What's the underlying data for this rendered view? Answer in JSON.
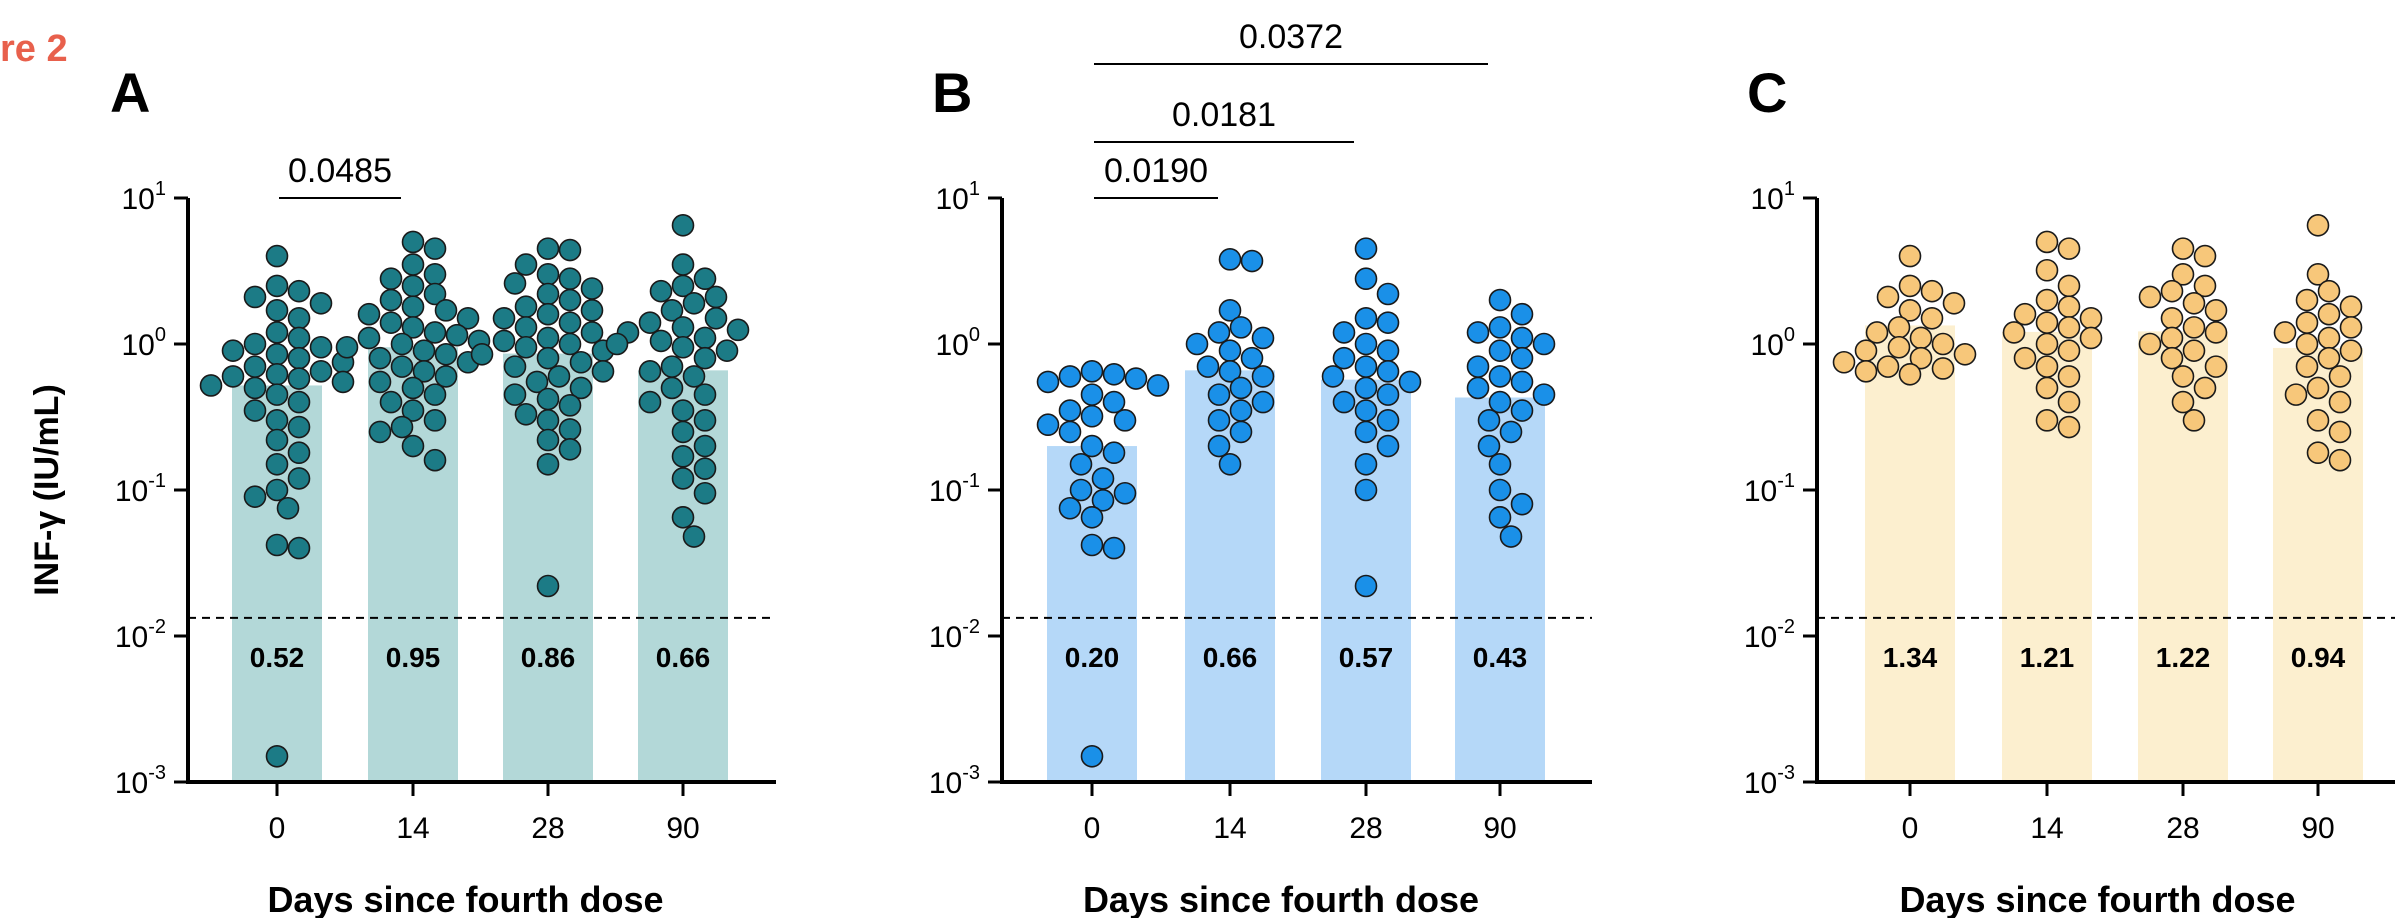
{
  "figure_label": "re 2",
  "chart_data": [
    {
      "panel": "A",
      "type": "scatter",
      "ylabel": "INF-γ (IU/mL)",
      "xlabel": "Days since fourth dose",
      "categories": [
        "0",
        "14",
        "28",
        "90"
      ],
      "y_scale": "log",
      "ylim": [
        0.001,
        10
      ],
      "y_ticks": [
        {
          "base": "10",
          "exp": "1"
        },
        {
          "base": "10",
          "exp": "0"
        },
        {
          "base": "10",
          "exp": "-1"
        },
        {
          "base": "10",
          "exp": "-2"
        },
        {
          "base": "10",
          "exp": "-3"
        }
      ],
      "cutoff": 0.0133,
      "bar_color": "#b3d8d8",
      "point_color": "#1c7b86",
      "medians": [
        0.52,
        0.95,
        0.86,
        0.66
      ],
      "median_labels": [
        "0.52",
        "0.95",
        "0.86",
        "0.66"
      ],
      "comparisons": [
        {
          "from": "0",
          "to": "14",
          "p": "0.0485"
        }
      ],
      "series": [
        {
          "category": "0",
          "values": [
            4.0,
            2.5,
            2.3,
            2.1,
            1.9,
            1.7,
            1.5,
            1.2,
            1.1,
            1.0,
            0.95,
            0.9,
            0.85,
            0.8,
            0.75,
            0.7,
            0.65,
            0.62,
            0.6,
            0.58,
            0.55,
            0.52,
            0.5,
            0.45,
            0.4,
            0.35,
            0.3,
            0.27,
            0.22,
            0.18,
            0.15,
            0.12,
            0.1,
            0.09,
            0.075,
            0.042,
            0.04,
            0.0015
          ]
        },
        {
          "category": "14",
          "values": [
            5.0,
            4.5,
            3.5,
            3.0,
            2.8,
            2.5,
            2.2,
            2.0,
            1.8,
            1.7,
            1.6,
            1.5,
            1.4,
            1.3,
            1.2,
            1.15,
            1.1,
            1.05,
            1.0,
            0.95,
            0.9,
            0.85,
            0.8,
            0.75,
            0.7,
            0.65,
            0.6,
            0.55,
            0.5,
            0.45,
            0.4,
            0.35,
            0.3,
            0.27,
            0.25,
            0.2,
            0.16
          ]
        },
        {
          "category": "28",
          "values": [
            4.5,
            4.4,
            3.5,
            3.0,
            2.8,
            2.6,
            2.4,
            2.2,
            2.0,
            1.8,
            1.7,
            1.6,
            1.5,
            1.4,
            1.3,
            1.2,
            1.1,
            1.05,
            1.0,
            0.95,
            0.9,
            0.85,
            0.8,
            0.75,
            0.7,
            0.65,
            0.6,
            0.55,
            0.5,
            0.45,
            0.42,
            0.38,
            0.33,
            0.3,
            0.26,
            0.22,
            0.19,
            0.15,
            0.022
          ]
        },
        {
          "category": "90",
          "values": [
            6.5,
            3.5,
            2.8,
            2.5,
            2.3,
            2.1,
            1.9,
            1.7,
            1.5,
            1.4,
            1.3,
            1.25,
            1.2,
            1.1,
            1.05,
            1.0,
            0.95,
            0.9,
            0.8,
            0.7,
            0.65,
            0.6,
            0.5,
            0.45,
            0.4,
            0.35,
            0.3,
            0.25,
            0.2,
            0.17,
            0.14,
            0.12,
            0.095,
            0.065,
            0.048
          ]
        }
      ]
    },
    {
      "panel": "B",
      "type": "scatter",
      "ylabel": "",
      "xlabel": "Days since fourth dose",
      "categories": [
        "0",
        "14",
        "28",
        "90"
      ],
      "y_scale": "log",
      "ylim": [
        0.001,
        10
      ],
      "y_ticks": [
        {
          "base": "10",
          "exp": "1"
        },
        {
          "base": "10",
          "exp": "0"
        },
        {
          "base": "10",
          "exp": "-1"
        },
        {
          "base": "10",
          "exp": "-2"
        },
        {
          "base": "10",
          "exp": "-3"
        }
      ],
      "cutoff": 0.0133,
      "bar_color": "#b5d8f8",
      "point_color": "#1a90e8",
      "medians": [
        0.2,
        0.66,
        0.57,
        0.43
      ],
      "median_labels": [
        "0.20",
        "0.66",
        "0.57",
        "0.43"
      ],
      "comparisons": [
        {
          "from": "0",
          "to": "14",
          "p": "0.0190"
        },
        {
          "from": "0",
          "to": "28",
          "p": "0.0181"
        },
        {
          "from": "0",
          "to": "90",
          "p": "0.0372"
        }
      ],
      "series": [
        {
          "category": "0",
          "values": [
            0.65,
            0.62,
            0.6,
            0.58,
            0.55,
            0.52,
            0.45,
            0.4,
            0.35,
            0.32,
            0.3,
            0.28,
            0.25,
            0.2,
            0.18,
            0.15,
            0.12,
            0.1,
            0.095,
            0.085,
            0.075,
            0.065,
            0.042,
            0.04,
            0.0015
          ]
        },
        {
          "category": "14",
          "values": [
            3.8,
            3.7,
            1.7,
            1.3,
            1.2,
            1.1,
            1.0,
            0.9,
            0.8,
            0.7,
            0.65,
            0.6,
            0.5,
            0.45,
            0.4,
            0.35,
            0.3,
            0.25,
            0.2,
            0.15
          ]
        },
        {
          "category": "28",
          "values": [
            4.5,
            2.8,
            2.2,
            1.5,
            1.4,
            1.2,
            1.0,
            0.9,
            0.8,
            0.7,
            0.65,
            0.6,
            0.55,
            0.5,
            0.45,
            0.4,
            0.35,
            0.3,
            0.25,
            0.2,
            0.15,
            0.1,
            0.022
          ]
        },
        {
          "category": "90",
          "values": [
            2.0,
            1.6,
            1.3,
            1.2,
            1.1,
            1.0,
            0.9,
            0.8,
            0.7,
            0.6,
            0.55,
            0.5,
            0.45,
            0.4,
            0.35,
            0.3,
            0.25,
            0.2,
            0.15,
            0.1,
            0.08,
            0.065,
            0.048
          ]
        }
      ]
    },
    {
      "panel": "C",
      "type": "scatter",
      "ylabel": "",
      "xlabel": "Days since fourth dose",
      "categories": [
        "0",
        "14",
        "28",
        "90"
      ],
      "y_scale": "log",
      "ylim": [
        0.001,
        10
      ],
      "y_ticks": [
        {
          "base": "10",
          "exp": "1"
        },
        {
          "base": "10",
          "exp": "0"
        },
        {
          "base": "10",
          "exp": "-1"
        },
        {
          "base": "10",
          "exp": "-2"
        },
        {
          "base": "10",
          "exp": "-3"
        }
      ],
      "cutoff": 0.0133,
      "bar_color": "#fcefcf",
      "point_color": "#f7c77a",
      "medians": [
        1.34,
        1.21,
        1.22,
        0.94
      ],
      "median_labels": [
        "1.34",
        "1.21",
        "1.22",
        "0.94"
      ],
      "comparisons": [],
      "series": [
        {
          "category": "0",
          "values": [
            4.0,
            2.5,
            2.3,
            2.1,
            1.9,
            1.7,
            1.5,
            1.3,
            1.2,
            1.1,
            1.0,
            0.95,
            0.9,
            0.85,
            0.8,
            0.75,
            0.7,
            0.68,
            0.65,
            0.62
          ]
        },
        {
          "category": "14",
          "values": [
            5.0,
            4.5,
            3.2,
            2.5,
            2.0,
            1.8,
            1.6,
            1.5,
            1.4,
            1.3,
            1.2,
            1.1,
            1.0,
            0.9,
            0.8,
            0.7,
            0.6,
            0.5,
            0.4,
            0.3,
            0.27
          ]
        },
        {
          "category": "28",
          "values": [
            4.5,
            4.0,
            3.0,
            2.5,
            2.3,
            2.1,
            1.9,
            1.7,
            1.5,
            1.3,
            1.2,
            1.1,
            1.0,
            0.9,
            0.8,
            0.7,
            0.6,
            0.5,
            0.4,
            0.3
          ]
        },
        {
          "category": "90",
          "values": [
            6.5,
            3.0,
            2.3,
            2.0,
            1.8,
            1.6,
            1.4,
            1.3,
            1.2,
            1.1,
            1.0,
            0.9,
            0.8,
            0.7,
            0.6,
            0.5,
            0.45,
            0.4,
            0.3,
            0.25,
            0.18,
            0.16
          ]
        }
      ]
    }
  ]
}
